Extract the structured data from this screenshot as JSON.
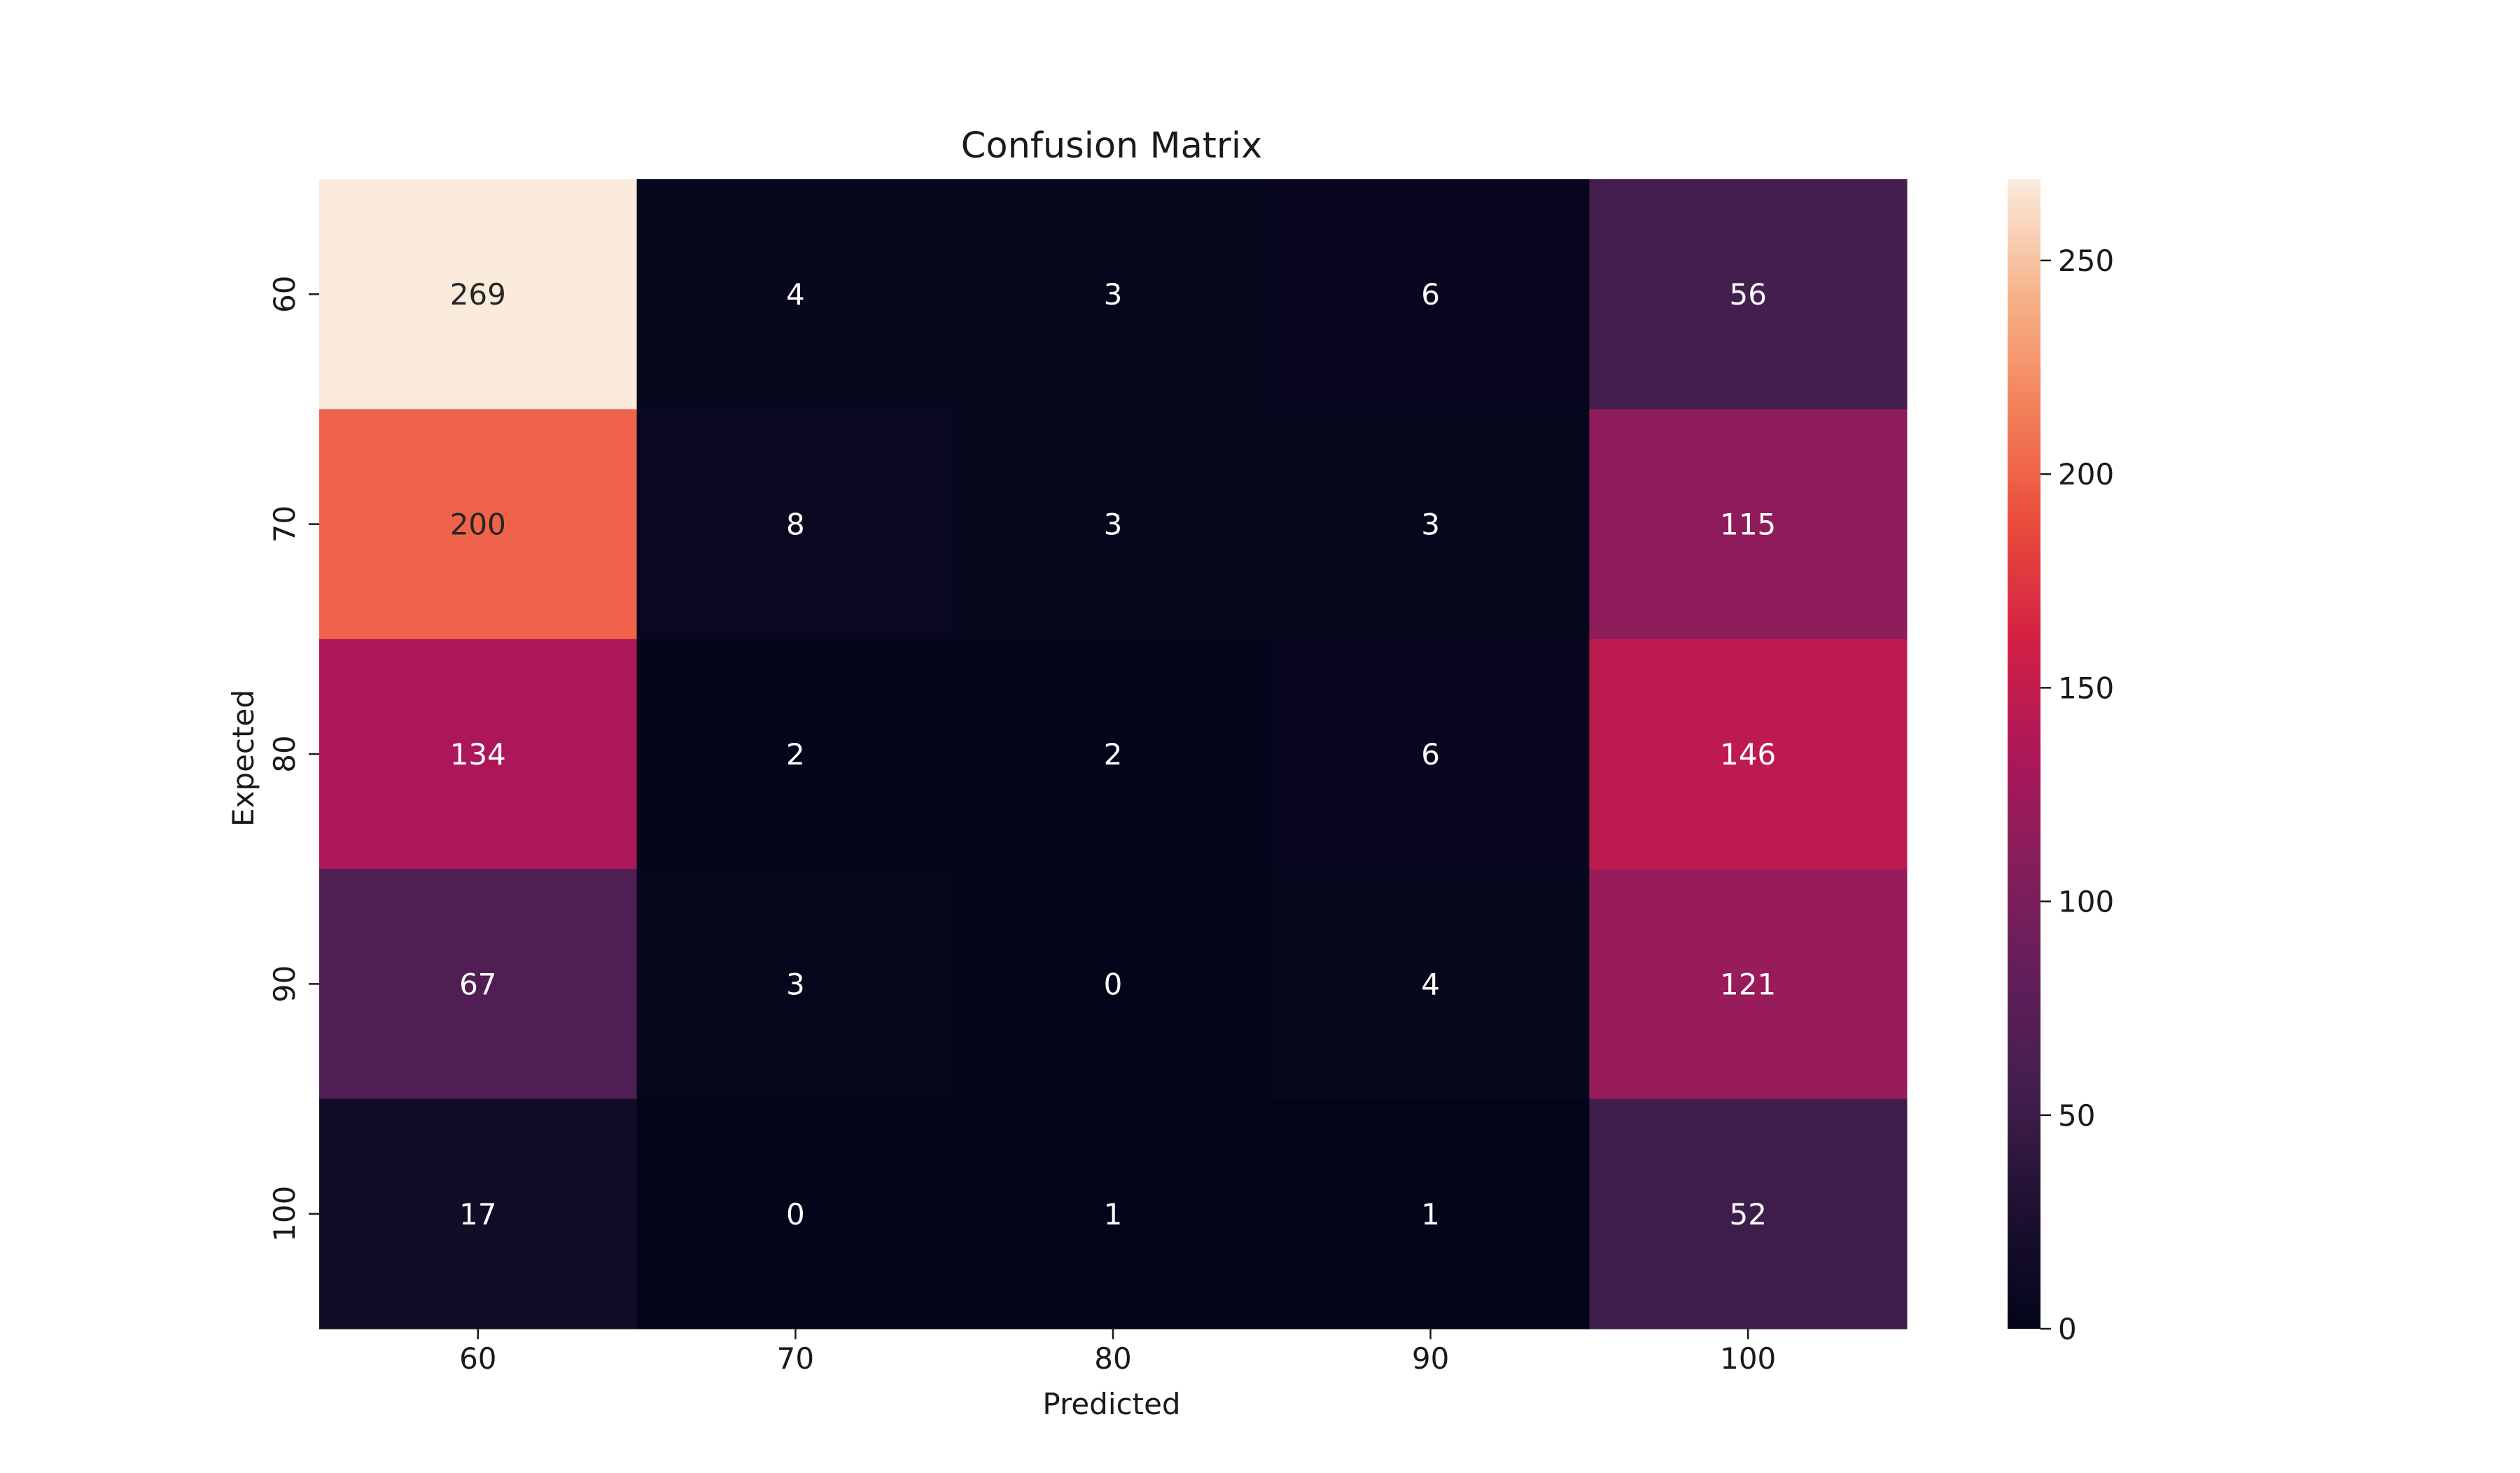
{
  "chart_data": {
    "type": "heatmap",
    "title": "Confusion Matrix",
    "xlabel": "Predicted",
    "ylabel": "Expected",
    "x_categories": [
      "60",
      "70",
      "80",
      "90",
      "100"
    ],
    "y_categories": [
      "60",
      "70",
      "80",
      "90",
      "100"
    ],
    "values": [
      [
        269,
        4,
        3,
        6,
        56
      ],
      [
        200,
        8,
        3,
        3,
        115
      ],
      [
        134,
        2,
        2,
        6,
        146
      ],
      [
        67,
        3,
        0,
        4,
        121
      ],
      [
        17,
        0,
        1,
        1,
        52
      ]
    ],
    "colormap": "rocket",
    "colorbar": {
      "vmin": 0,
      "vmax": 269,
      "ticks": [
        0,
        50,
        100,
        150,
        200,
        250
      ]
    },
    "annotation_colors": {
      "on_dark": "#ffffff",
      "on_light": "#262626"
    }
  }
}
